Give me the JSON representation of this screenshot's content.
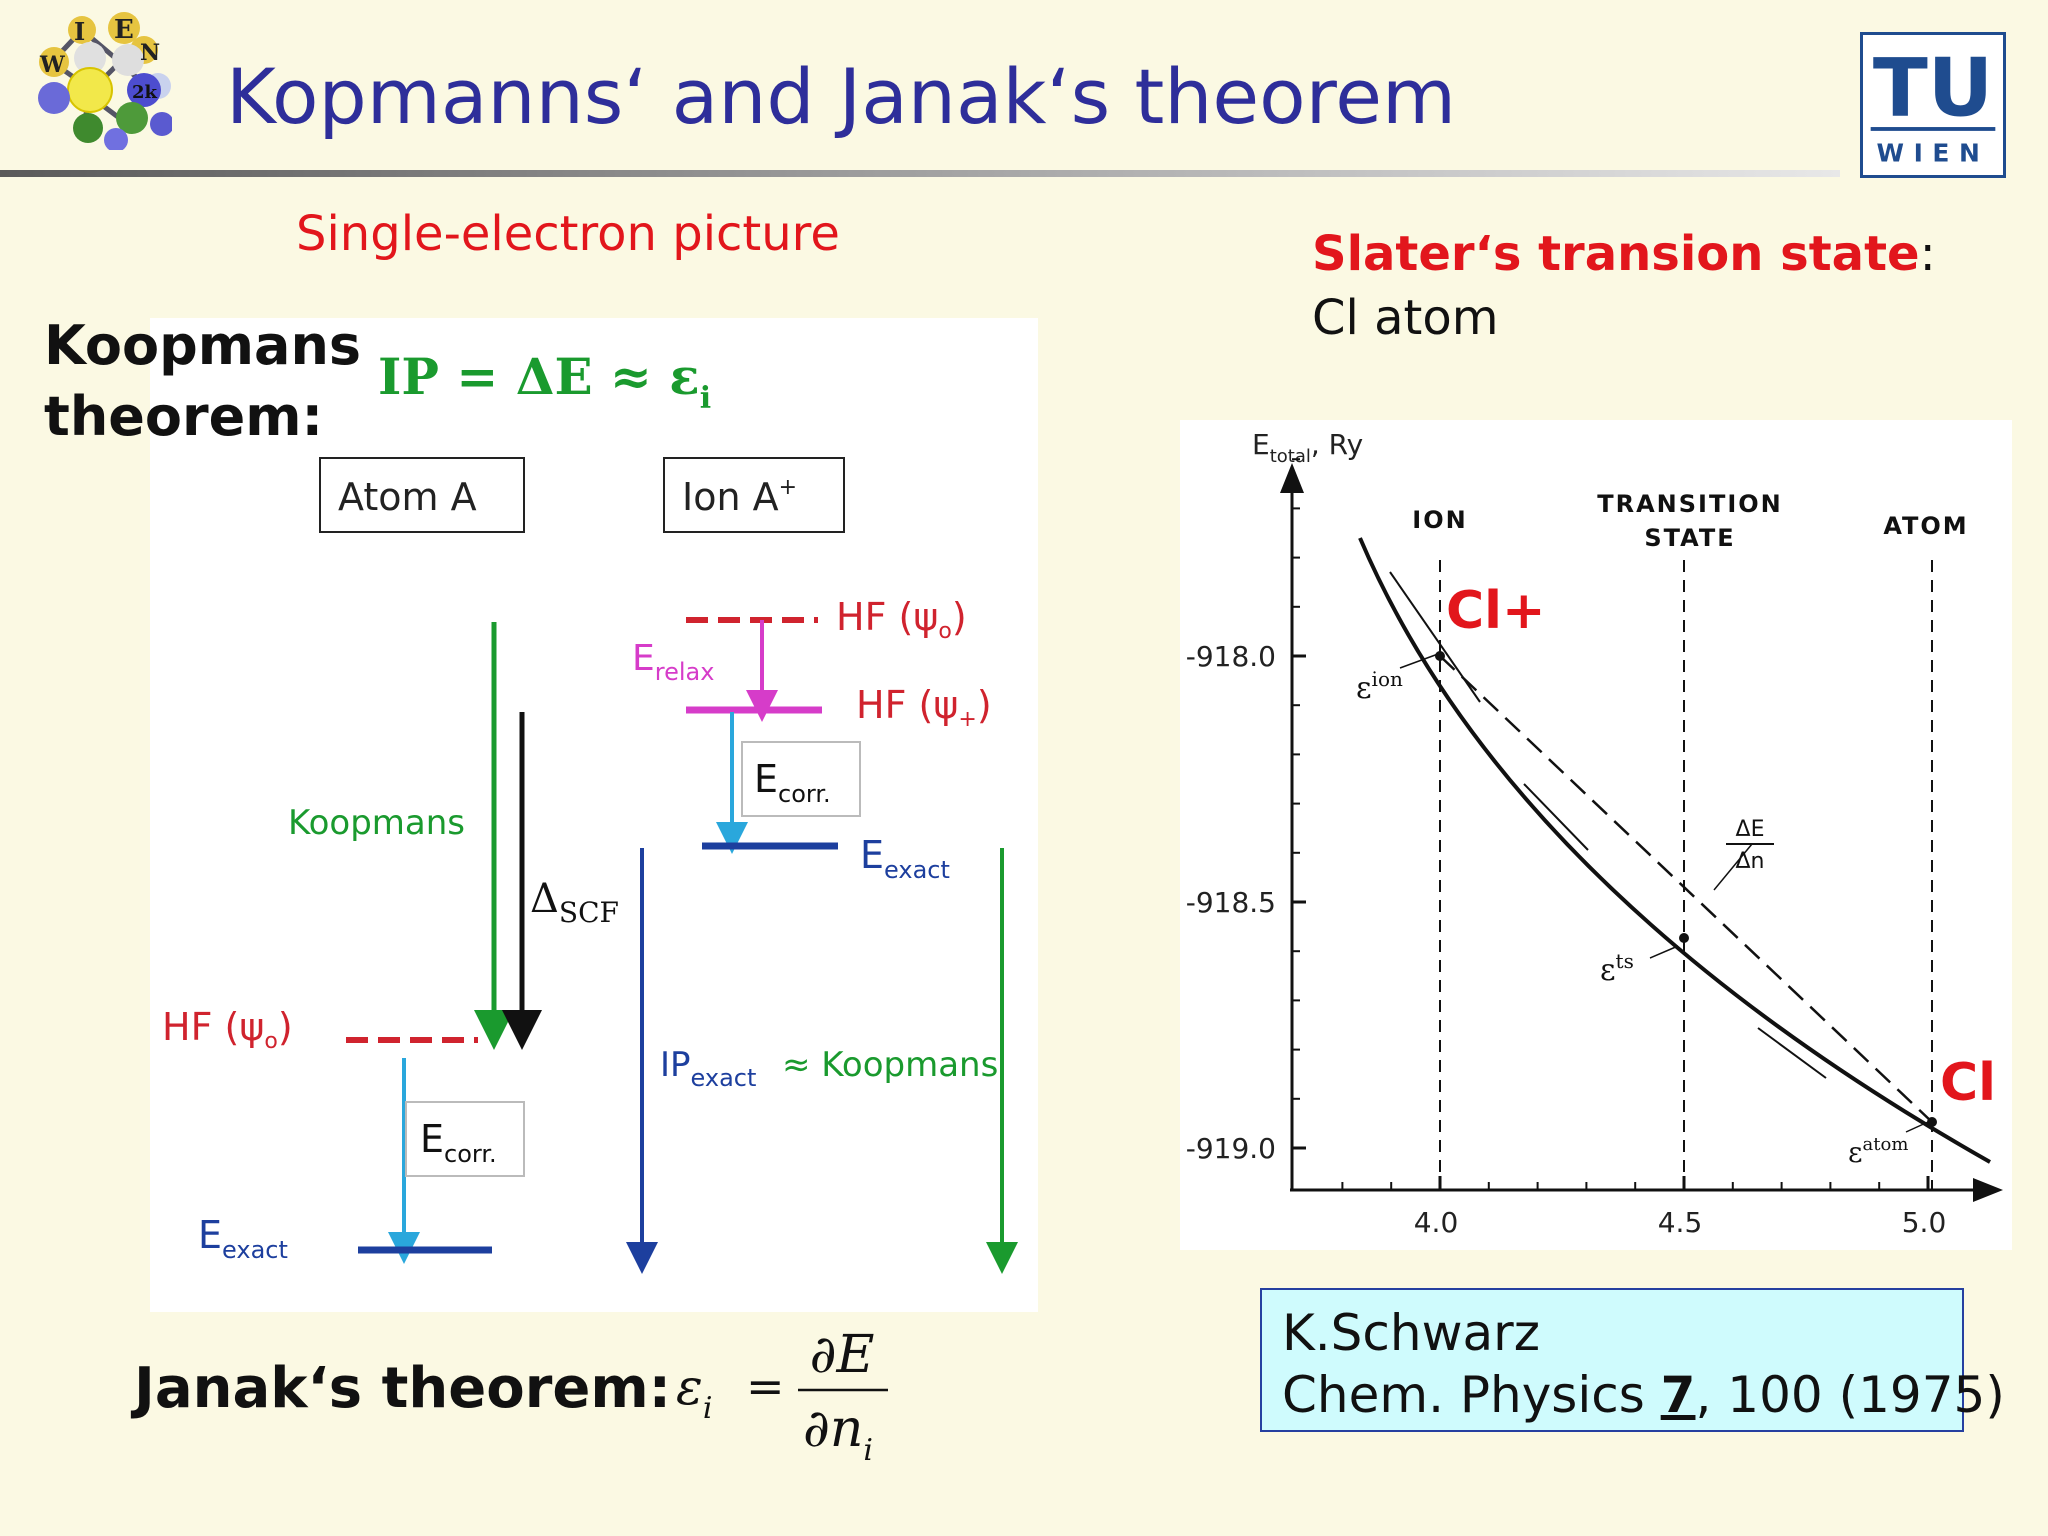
{
  "slide": {
    "title": "Kopmanns‘ and Janak‘s theorem",
    "subtitle_left": "Single-electron picture",
    "slater_title": "Slater‘s transion state",
    "slater_colon": ":",
    "cl_atom": "Cl atom",
    "koopmans_label_line1": "Koopmans",
    "koopmans_label_line2": "theorem:",
    "janak_label": "Janak‘s theorem:"
  },
  "logos": {
    "wien2k_letters": [
      "W",
      "I",
      "E",
      "N",
      "2k"
    ],
    "tu_top": "TU",
    "tu_bottom": "WIEN"
  },
  "koopmans_diagram": {
    "formula_ip": "IP = ΔE ≈ ε",
    "formula_sub": "i",
    "atom_box": "Atom A",
    "ion_box": "Ion A",
    "ion_sup": "+",
    "koopmans_label": "Koopmans",
    "delta": "Δ",
    "delta_sub": "SCF",
    "hf_psi0_ion": "HF (ψ",
    "hf_psi0_ion_sub": "o",
    "hf_psi_plus": "HF (ψ",
    "hf_psi_plus_sub": "+",
    "e_relax": "E",
    "e_relax_sub": "relax",
    "e_corr_ion": "E",
    "e_corr_ion_sub": "corr.",
    "e_exact_ion": "E",
    "e_exact_ion_sub": "exact",
    "hf_psi0_atom": "HF (ψ",
    "hf_psi0_atom_sub": "o",
    "e_corr_atom": "E",
    "e_corr_atom_sub": "corr.",
    "e_exact_atom": "E",
    "e_exact_atom_sub": "exact",
    "ip_exact": "IP",
    "ip_exact_sub": "exact",
    "approx_koopmans": "≈ Koopmans",
    "paren_close": ")",
    "colors": {
      "green": "#1a9a2e",
      "red": "#d0232e",
      "magenta": "#d63cc9",
      "cyan": "#2aa7dc",
      "blue": "#1d3f9e",
      "black": "#111111"
    }
  },
  "energy_plot": {
    "y_axis_label": "E",
    "y_axis_sub": "total",
    "y_axis_unit": ", Ry",
    "ion_label": "ION",
    "ts_label_line1": "TRANSITION",
    "ts_label_line2": "STATE",
    "atom_label": "ATOM",
    "cl_plus": "Cl+",
    "cl": "Cl",
    "eps_ion": "ε",
    "eps_ion_sup": "ion",
    "eps_ts": "ε",
    "eps_ts_sup": "ts",
    "eps_atom": "ε",
    "eps_atom_sup": "atom",
    "de_dn_top": "ΔE",
    "de_dn_bottom": "Δn",
    "y_ticks": [
      {
        "value": -918.0,
        "label": "-918.0"
      },
      {
        "value": -918.5,
        "label": "-918.5"
      },
      {
        "value": -919.0,
        "label": "-919.0"
      }
    ],
    "x_ticks": [
      {
        "value": 4.0,
        "label": "4.0"
      },
      {
        "value": 4.5,
        "label": "4.5"
      },
      {
        "value": 5.0,
        "label": "5.0"
      }
    ]
  },
  "janak_formula": {
    "eps": "ε",
    "eps_sub": "i",
    "equals": "=",
    "numerator": "∂E",
    "denominator": "∂n",
    "denominator_sub": "i"
  },
  "reference": {
    "line1": "K.Schwarz",
    "line2_prefix": "Chem. Physics ",
    "volume": "7",
    "line2_suffix": ", 100 (1975)"
  }
}
